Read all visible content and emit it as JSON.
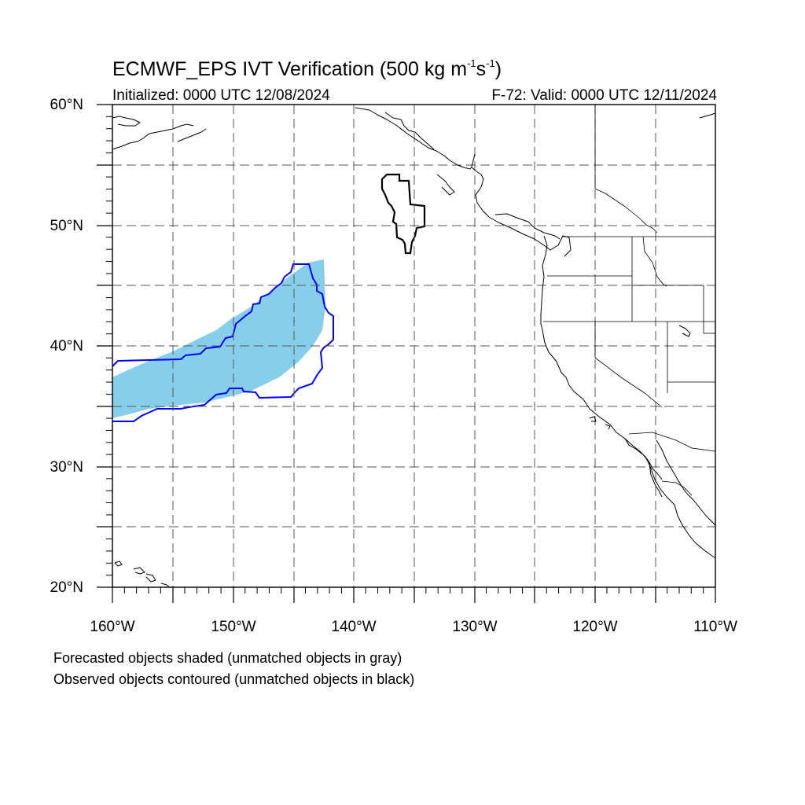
{
  "header": {
    "title_main": "ECMWF_EPS IVT Verification (500 kg m",
    "title_sup1": "-1",
    "title_mid": "s",
    "title_sup2": "-1",
    "title_end": ")",
    "initialized": "Initialized: 0000 UTC 12/08/2024",
    "valid": "F-72: Valid: 0000 UTC 12/11/2024"
  },
  "axes": {
    "lat_labels": [
      "60°N",
      "50°N",
      "40°N",
      "30°N",
      "20°N"
    ],
    "lon_labels": [
      "160°W",
      "150°W",
      "140°W",
      "130°W",
      "120°W",
      "110°W"
    ],
    "lat_range": [
      20,
      60
    ],
    "lon_range": [
      -160,
      -110
    ],
    "grid": "dashed, every 5 degrees"
  },
  "legend": {
    "line1": "Forecasted objects shaded (unmatched objects in gray)",
    "line2": "Observed objects contoured (unmatched objects in black)"
  },
  "colors": {
    "forecast_matched": "#87ceeb",
    "observed_matched": "#0000ff",
    "observed_unmatched": "#000000",
    "grid": "#555555",
    "coastline": "#000000"
  }
}
